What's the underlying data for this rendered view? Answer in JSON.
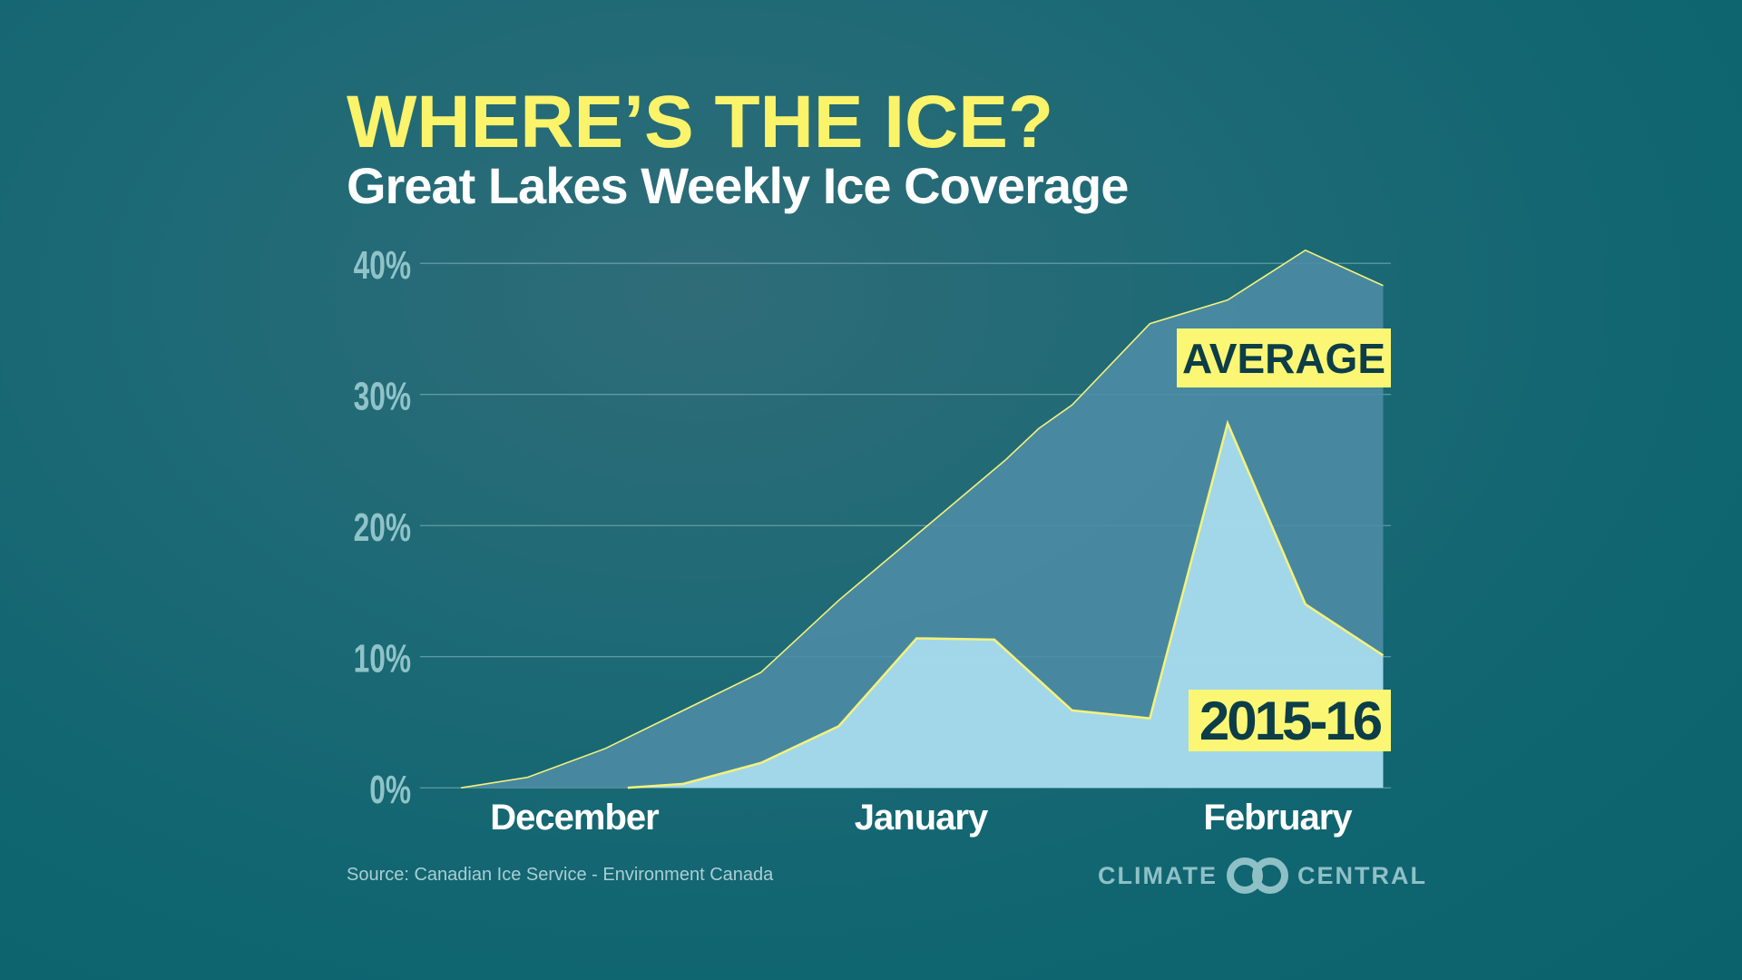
{
  "header": {
    "title": "WHERE’S THE ICE?",
    "subtitle": "Great Lakes Weekly Ice Coverage"
  },
  "footer": {
    "source": "Source: Canadian Ice Service - Environment Canada",
    "logo_left": "CLIMATE",
    "logo_right": "CENTRAL"
  },
  "colors": {
    "title": "#fbf36a",
    "average_fill": "#4d8ca5",
    "season_fill": "#a8dbee",
    "line": "#f5f27a",
    "label_bg": "#fbf774",
    "label_text": "#0c3d48",
    "tick_text": "#8fc3c8"
  },
  "chart_data": {
    "type": "area",
    "title": "WHERE’S THE ICE?",
    "subtitle": "Great Lakes Weekly Ice Coverage",
    "xlabel": "",
    "ylabel": "",
    "ylim": [
      0,
      40
    ],
    "yticks": [
      "0%",
      "10%",
      "20%",
      "30%",
      "40%"
    ],
    "ytick_values": [
      0,
      10,
      20,
      30,
      40
    ],
    "xlim": [
      "Dec 1",
      "Mar 1"
    ],
    "xticks": [
      "December",
      "January",
      "February"
    ],
    "grid": true,
    "series": [
      {
        "name": "AVERAGE",
        "x": [
          "Dec 6",
          "Dec 12",
          "Dec 19",
          "Jan 2",
          "Jan 9",
          "Jan 24",
          "Jan 27",
          "Jan 30",
          "Feb 6",
          "Feb 13",
          "Feb 20",
          "Feb 27"
        ],
        "values": [
          0,
          0.8,
          3.0,
          8.8,
          14.3,
          25.0,
          27.4,
          29.2,
          35.4,
          37.2,
          41.0,
          38.3
        ]
      },
      {
        "name": "2015-16",
        "x": [
          "Dec 21",
          "Dec 26",
          "Jan 2",
          "Jan 9",
          "Jan 16",
          "Jan 23",
          "Jan 30",
          "Feb 6",
          "Feb 13",
          "Feb 20",
          "Feb 27"
        ],
        "values": [
          0,
          0.3,
          1.9,
          4.7,
          11.4,
          11.3,
          5.9,
          5.3,
          27.8,
          14.0,
          10.1
        ]
      }
    ]
  }
}
